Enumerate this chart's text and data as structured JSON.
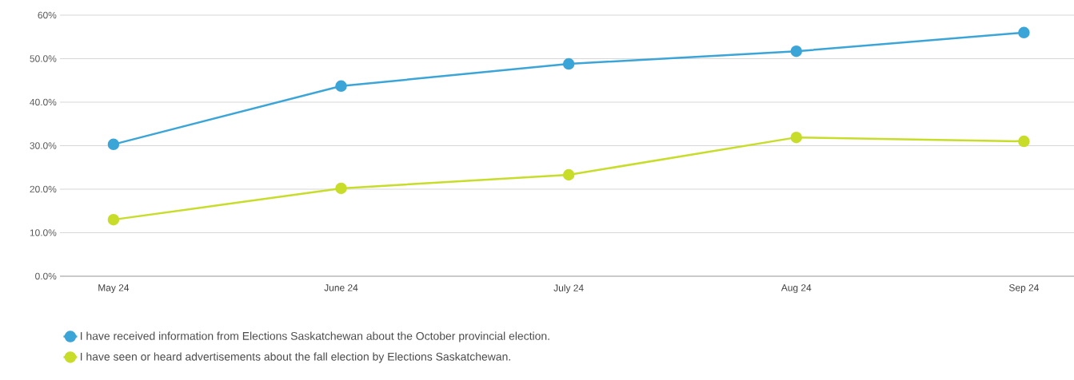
{
  "chart_data": {
    "type": "line",
    "categories": [
      "May 24",
      "June 24",
      "July 24",
      "Aug 24",
      "Sep 24"
    ],
    "series": [
      {
        "name": "I have received information from Elections Saskatchewan about the October provincial election.",
        "color": "#3ba5d8",
        "values": [
          30.3,
          43.7,
          48.8,
          51.7,
          56.0
        ]
      },
      {
        "name": "I have seen or heard advertisements about the fall election by Elections Saskatchewan.",
        "color": "#c8dc2a",
        "values": [
          13.0,
          20.2,
          23.3,
          31.9,
          31.0
        ]
      }
    ],
    "ylim": [
      0,
      60
    ],
    "yticks": [
      {
        "value": 0,
        "label": "0.0%"
      },
      {
        "value": 10,
        "label": "10.0%"
      },
      {
        "value": 20,
        "label": "20.0%"
      },
      {
        "value": 30,
        "label": "30.0%"
      },
      {
        "value": 40,
        "label": "40.0%"
      },
      {
        "value": 50,
        "label": "50.0%"
      },
      {
        "value": 60,
        "label": "60%"
      }
    ],
    "grid": "y",
    "legend": "bottom",
    "marker": "circle",
    "line_style": "solid"
  }
}
